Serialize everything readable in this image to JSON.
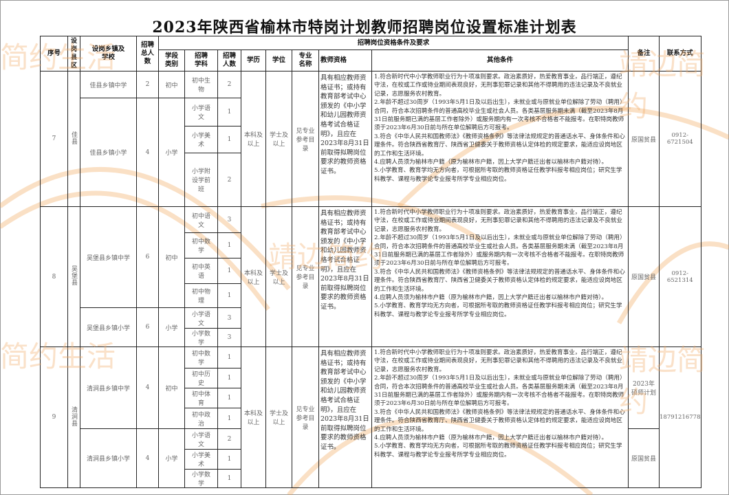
{
  "title": "2023年陕西省榆林市特岗计划教师招聘岗位设置标准计划表",
  "watermarks": [
    "简约生活",
    "靖边简约",
    "靖边简约",
    "简约生活",
    "靖边简约"
  ],
  "header": {
    "seq": "序号",
    "county": "设岗县区",
    "school": "设岗乡镇及学校",
    "total": "招聘总人数",
    "group": "招聘岗位资格条件及要求",
    "stage": "学段类别",
    "subject": "招聘学科",
    "count": "招聘人数",
    "education": "学历",
    "degree": "学位",
    "major": "专业名称",
    "qualification": "教师资格",
    "other": "其他条件",
    "remark": "备注",
    "contact": "联系方式"
  },
  "shared": {
    "education": "本科及以上",
    "degree": "学士及以上",
    "major": "见专业参考目录",
    "qualification": "具有相应教师资格证书；或持有教育部考试中心颁发的《中小学和幼儿园教师资格考试合格证明》，且应在2023年8月31日前取得拟聘岗位要求的教师资格证书。",
    "other": "1.符合新时代中小学教师职业行为十项准则要求。政治素质好，热爱教育事业，品行端正，遵纪守法，在校或工作或待业期间表现良好，无刑事犯罪记录和其他不得聘用的违法记录及不良就业记录，志愿服务农村教育。\n2.年龄不超过30周岁（1993年5月1日及以后出生），未就业或与原就业单位解除了劳动（聘用）合同，符合本次招聘条件的普通高校毕业生或社会人员。各类基层服务期未满（截至2023年8月31日前服务期已满的基层工作者除外）或服务期内有一次考核不合格者不能报考。在职特岗教师须于2023年6月30日前与所在单位解聘后方可报考。\n3.符合《中华人民共和国教师法》《教师资格条例》等法律法规规定的普通话水平、身体条件和心理条件。符合陕西省教育厅、陕西省卫健委关于教师资格认定体检的规定要求，能适应设岗地区的工作和生活环境。\n4.应聘人员须为榆林市户籍（原为榆林市户籍，因上大学户籍迁出者以榆林市户籍对待）。\n5.小学教育、教育学均无方向者，可根据所考取的教师资格证任教学科报考相应岗位；研究生学科教学、课程与教学论专业报考所学专业相应岗位。"
  },
  "groups": [
    {
      "seq": "7",
      "county": "佳县",
      "remark": "原国贫县",
      "contact": "0912-6721504",
      "schools": [
        {
          "name": "佳县乡镇中学",
          "total": "2",
          "stage": "初中",
          "subjects": [
            {
              "name": "初中生物",
              "count": "2"
            }
          ]
        },
        {
          "name": "佳县乡镇小学",
          "total": "4",
          "stage": "小学",
          "subjects": [
            {
              "name": "小学语文",
              "count": "1"
            },
            {
              "name": "小学美术",
              "count": "1"
            },
            {
              "name": "小学附设学前班",
              "count": "2"
            }
          ]
        }
      ]
    },
    {
      "seq": "8",
      "county": "吴堡县",
      "remark": "原国贫县",
      "contact": "0912-6521314",
      "schools": [
        {
          "name": "吴堡县乡镇中学",
          "total": "6",
          "stage": "初中",
          "subjects": [
            {
              "name": "初中语文",
              "count": "3"
            },
            {
              "name": "初中数学",
              "count": "1"
            },
            {
              "name": "初中英语",
              "count": "1"
            },
            {
              "name": "初中物理",
              "count": "1"
            }
          ]
        },
        {
          "name": "吴堡县乡镇小学",
          "total": "6",
          "stage": "小学",
          "subjects": [
            {
              "name": "小学语文",
              "count": "3"
            },
            {
              "name": "小学数学",
              "count": "3"
            }
          ]
        }
      ]
    },
    {
      "seq": "9",
      "county": "清涧县",
      "remark_middle": "2023年硕师计划",
      "remark": "原国贫县",
      "contact": "18791216778",
      "schools": [
        {
          "name": "清涧县乡镇中学",
          "total": "4",
          "stage": "初中",
          "subjects": [
            {
              "name": "初中数学",
              "count": "1"
            },
            {
              "name": "初中历史",
              "count": "1"
            },
            {
              "name": "初中体育",
              "count": "1"
            },
            {
              "name": "初中政治",
              "count": "1"
            }
          ]
        },
        {
          "name": "清涧县乡镇小学",
          "total": "4",
          "stage": "小学",
          "subjects": [
            {
              "name": "小学语文",
              "count": "2"
            },
            {
              "name": "小学美术",
              "count": "1"
            },
            {
              "name": "小学数学",
              "count": "1"
            }
          ]
        }
      ]
    }
  ]
}
